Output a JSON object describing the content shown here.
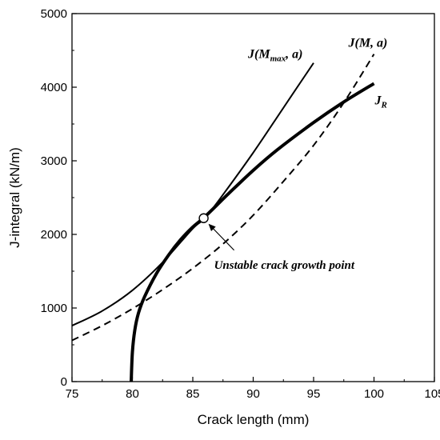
{
  "chart_data": {
    "type": "line",
    "xlabel": "Crack length (mm)",
    "ylabel": "J-integral (kN/m)",
    "xlim": [
      75,
      105
    ],
    "ylim": [
      0,
      5000
    ],
    "xticks": [
      "75",
      "80",
      "85",
      "90",
      "95",
      "100",
      "105"
    ],
    "yticks": [
      "0",
      "1000",
      "2000",
      "3000",
      "4000",
      "5000"
    ],
    "grid": false,
    "series": [
      {
        "name": "J_R",
        "style": "thick-solid",
        "x": [
          79.9,
          80.0,
          80.2,
          80.5,
          81.0,
          82.0,
          83.0,
          84.0,
          85.0,
          86.0,
          88.0,
          90.0,
          92.0,
          95.0,
          97.5,
          100.0
        ],
        "y": [
          0,
          400,
          700,
          930,
          1150,
          1470,
          1720,
          1930,
          2100,
          2240,
          2560,
          2870,
          3150,
          3520,
          3800,
          4050
        ]
      },
      {
        "name": "J(M_max, a)",
        "style": "thin-solid",
        "x": [
          75,
          77.5,
          80,
          82.5,
          85,
          86,
          87.5,
          90,
          92.5,
          95
        ],
        "y": [
          760,
          960,
          1240,
          1620,
          2080,
          2220,
          2540,
          3110,
          3720,
          4330
        ]
      },
      {
        "name": "J(M, a)",
        "style": "dashed",
        "x": [
          75,
          77.5,
          80,
          82.5,
          85,
          87.5,
          90,
          92.5,
          95,
          97.5,
          100
        ],
        "y": [
          560,
          760,
          990,
          1250,
          1540,
          1870,
          2260,
          2720,
          3210,
          3790,
          4450
        ]
      }
    ],
    "labels": {
      "jmmax_main": "J(M",
      "jmmax_sub": "max",
      "jmmax_end": ", a)",
      "jma": "J(M, a)",
      "jr_main": "J",
      "jr_sub": "R"
    },
    "annotation": {
      "text": "Unstable crack growth point",
      "point": {
        "x": 85.9,
        "y": 2220
      }
    }
  }
}
